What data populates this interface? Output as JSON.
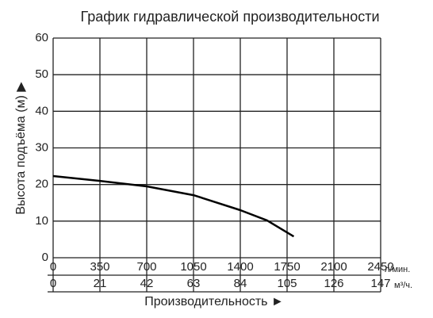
{
  "chart_data": {
    "type": "line",
    "title": "График гидравлической производительности",
    "y_label": "Высота подъёма (м) ▶",
    "x_label": "Производительность ►",
    "x_unit": "л/мин.",
    "x2_unit": "м³/ч.",
    "x": [
      0,
      350,
      700,
      1050,
      1400,
      1600,
      1800
    ],
    "values": [
      22.3,
      21,
      19.5,
      17.1,
      13,
      10.2,
      5.8
    ],
    "color": "#000000",
    "xlim": [
      0,
      2450
    ],
    "xticks": [
      0,
      350,
      700,
      1050,
      1400,
      1750,
      2100,
      2450
    ],
    "x2lim": [
      0,
      147
    ],
    "x2ticks": [
      0,
      21,
      42,
      63,
      84,
      105,
      126,
      147
    ],
    "ylim": [
      0,
      60
    ],
    "yticks": [
      0,
      10,
      20,
      30,
      40,
      50,
      60
    ],
    "grid": true
  }
}
